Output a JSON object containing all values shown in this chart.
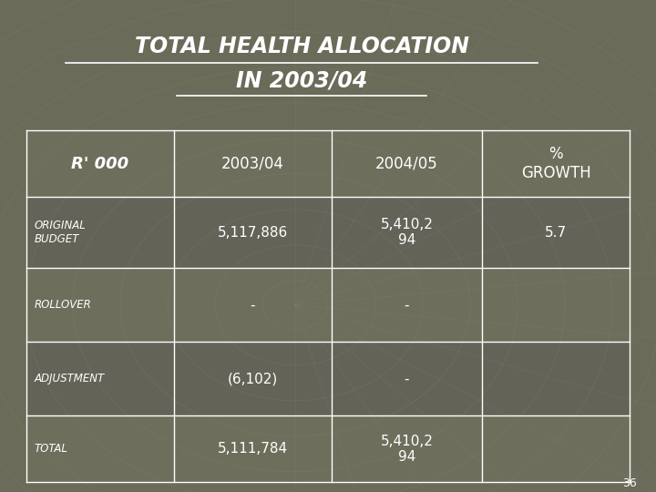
{
  "title_line1": "TOTAL HEALTH ALLOCATION",
  "title_line2": "IN 2003/04",
  "bg_color": "#6b6b5a",
  "title_color": "#ffffff",
  "text_color": "#ffffff",
  "page_number": "36",
  "col_headers": [
    "R' 000",
    "2003/04",
    "2004/05",
    "%\nGROWTH"
  ],
  "rows": [
    [
      "ORIGINAL\nBUDGET",
      "5,117,886",
      "5,410,2\n94",
      "5.7"
    ],
    [
      "ROLLOVER",
      "-",
      "-",
      ""
    ],
    [
      "ADJUSTMENT",
      "(6,102)",
      "-",
      ""
    ],
    [
      "TOTAL",
      "5,111,784",
      "5,410,2\n94",
      ""
    ]
  ],
  "col_bounds": [
    0.04,
    0.265,
    0.505,
    0.735,
    0.96
  ],
  "row_bounds": [
    0.735,
    0.6,
    0.455,
    0.305,
    0.155,
    0.02
  ]
}
